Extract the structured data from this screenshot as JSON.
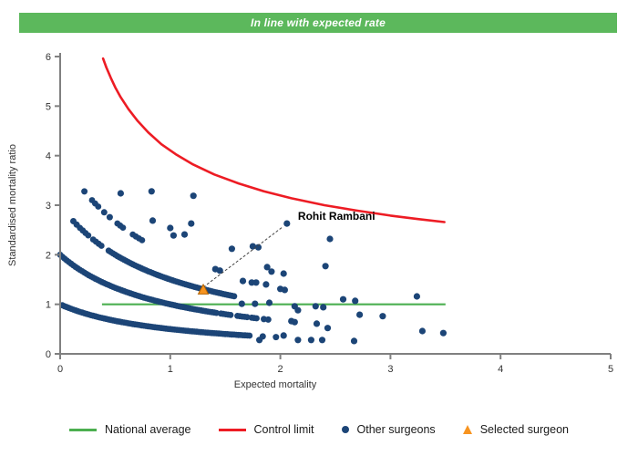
{
  "header": {
    "text": "In line with expected rate",
    "bg_color": "#5cb85c",
    "text_color": "#ffffff"
  },
  "chart_data": {
    "type": "scatter",
    "subtype": "funnel-plot",
    "title": "",
    "xlabel": "Expected mortality",
    "ylabel": "Standardised mortality ratio",
    "xlim": [
      0,
      5
    ],
    "ylim": [
      0,
      6
    ],
    "xticks": [
      0,
      1,
      2,
      3,
      4,
      5
    ],
    "yticks": [
      0,
      1,
      2,
      3,
      4,
      5,
      6
    ],
    "grid": false,
    "colors": {
      "other_surgeons": "#1c4577",
      "control_limit": "#ed1c24",
      "national_average": "#4caf50",
      "selected_surgeon_fill": "#f79420",
      "selected_surgeon_stroke": "#b36200",
      "axis": "#808080",
      "text": "#333333",
      "annotation_line": "#444444"
    },
    "national_average": {
      "y": 1,
      "x_start": 0.38,
      "x_end": 3.5
    },
    "control_limit": {
      "points": [
        [
          0.39,
          5.96
        ],
        [
          0.42,
          5.78
        ],
        [
          0.46,
          5.57
        ],
        [
          0.5,
          5.38
        ],
        [
          0.55,
          5.18
        ],
        [
          0.62,
          4.94
        ],
        [
          0.7,
          4.71
        ],
        [
          0.8,
          4.47
        ],
        [
          0.92,
          4.23
        ],
        [
          1.05,
          4.03
        ],
        [
          1.2,
          3.83
        ],
        [
          1.4,
          3.62
        ],
        [
          1.62,
          3.44
        ],
        [
          1.85,
          3.28
        ],
        [
          2.1,
          3.14
        ],
        [
          2.4,
          3.0
        ],
        [
          2.7,
          2.89
        ],
        [
          3.0,
          2.79
        ],
        [
          3.25,
          2.72
        ],
        [
          3.49,
          2.66
        ]
      ]
    },
    "band_formula": "smr = deaths / (1 + expected_mortality)",
    "bands": [
      {
        "deaths": 1,
        "segments": [
          {
            "from": 0.02,
            "to": 1.73,
            "step": 0.02
          }
        ],
        "extra_dots": [
          1.84,
          1.96
        ]
      },
      {
        "deaths": 2,
        "segments": [
          {
            "from": 0.0,
            "to": 1.42,
            "step": 0.02
          },
          {
            "from": 1.46,
            "to": 1.56,
            "step": 0.022
          },
          {
            "from": 1.61,
            "to": 1.7,
            "step": 0.022
          },
          {
            "from": 1.74,
            "to": 1.8,
            "step": 0.022
          }
        ],
        "extra_dots": [
          1.85,
          1.89
        ]
      },
      {
        "deaths": 3,
        "segments": [
          {
            "from": 0.18,
            "to": 0.26,
            "step": 0.025
          },
          {
            "from": 0.3,
            "to": 0.38,
            "step": 0.025
          },
          {
            "from": 0.44,
            "to": 1.58,
            "step": 0.02
          }
        ],
        "extra_dots": [
          0.12,
          0.15
        ]
      },
      {
        "deaths": 4,
        "segments": [
          {
            "from": 0.29,
            "to": 0.35,
            "step": 0.028
          },
          {
            "from": 0.52,
            "to": 0.57,
            "step": 0.025
          },
          {
            "from": 0.66,
            "to": 0.76,
            "step": 0.028
          }
        ],
        "extra_dots": [
          0.22,
          0.4,
          0.45
        ]
      }
    ],
    "scatter_points": [
      [
        0.55,
        3.24
      ],
      [
        0.83,
        3.28
      ],
      [
        1.21,
        3.19
      ],
      [
        0.84,
        2.69
      ],
      [
        1.0,
        2.54
      ],
      [
        1.03,
        2.39
      ],
      [
        1.13,
        2.41
      ],
      [
        1.19,
        2.63
      ],
      [
        1.41,
        1.71
      ],
      [
        1.45,
        1.68
      ],
      [
        1.56,
        2.12
      ],
      [
        1.75,
        2.17
      ],
      [
        1.66,
        1.47
      ],
      [
        1.74,
        1.44
      ],
      [
        1.8,
        2.15
      ],
      [
        1.78,
        1.44
      ],
      [
        1.87,
        1.4
      ],
      [
        1.88,
        1.75
      ],
      [
        1.92,
        1.66
      ],
      [
        2.03,
        1.62
      ],
      [
        2.0,
        1.31
      ],
      [
        2.04,
        1.29
      ],
      [
        2.06,
        2.63
      ],
      [
        2.45,
        2.32
      ],
      [
        2.41,
        1.77
      ],
      [
        1.65,
        1.01
      ],
      [
        1.77,
        1.01
      ],
      [
        1.9,
        1.03
      ],
      [
        2.13,
        0.96
      ],
      [
        2.32,
        0.96
      ],
      [
        2.39,
        0.94
      ],
      [
        2.16,
        0.88
      ],
      [
        2.57,
        1.1
      ],
      [
        2.68,
        1.07
      ],
      [
        2.72,
        0.79
      ],
      [
        2.93,
        0.76
      ],
      [
        3.24,
        1.16
      ],
      [
        2.1,
        0.66
      ],
      [
        2.13,
        0.64
      ],
      [
        2.33,
        0.61
      ],
      [
        2.43,
        0.52
      ],
      [
        2.03,
        0.37
      ],
      [
        1.81,
        0.28
      ],
      [
        2.16,
        0.28
      ],
      [
        2.28,
        0.28
      ],
      [
        2.38,
        0.28
      ],
      [
        2.67,
        0.26
      ],
      [
        3.29,
        0.46
      ],
      [
        3.48,
        0.42
      ]
    ],
    "selected_surgeon": {
      "name": "Rohit Rambani",
      "x": 1.3,
      "y": 1.29,
      "label_x": 2.16,
      "label_y": 2.78,
      "leader_end": [
        2.02,
        2.56
      ]
    }
  },
  "legend": {
    "items": [
      {
        "label": "National average",
        "marker": "line",
        "color": "#4caf50"
      },
      {
        "label": "Control limit",
        "marker": "line",
        "color": "#ed1c24"
      },
      {
        "label": "Other surgeons",
        "marker": "dot",
        "color": "#1c4577"
      },
      {
        "label": "Selected surgeon",
        "marker": "triangle",
        "color": "#f79420"
      }
    ]
  }
}
